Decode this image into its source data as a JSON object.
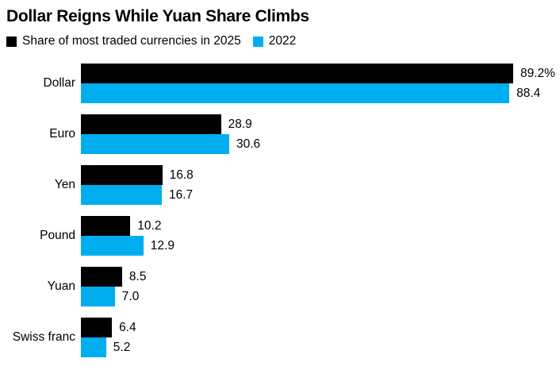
{
  "chart_data": {
    "type": "bar",
    "orientation": "horizontal",
    "title": "Dollar Reigns While Yuan Share Climbs",
    "categories": [
      "Dollar",
      "Euro",
      "Yen",
      "Pound",
      "Yuan",
      "Swiss franc"
    ],
    "series": [
      {
        "name": "Share of most traded currencies in 2025",
        "color": "#000000",
        "values": [
          89.2,
          28.9,
          16.8,
          10.2,
          8.5,
          6.4
        ],
        "labels": [
          "89.2%",
          "28.9",
          "16.8",
          "10.2",
          "8.5",
          "6.4"
        ]
      },
      {
        "name": "2022",
        "color": "#00aef0",
        "values": [
          88.4,
          30.6,
          16.7,
          12.9,
          7.0,
          5.2
        ],
        "labels": [
          "88.4",
          "30.6",
          "16.7",
          "12.9",
          "7.0",
          "5.2"
        ]
      }
    ],
    "xlim": [
      0,
      89.2
    ],
    "grid": false,
    "legend_position": "top",
    "value_labels": "outside-end",
    "background": "#ffffff"
  }
}
